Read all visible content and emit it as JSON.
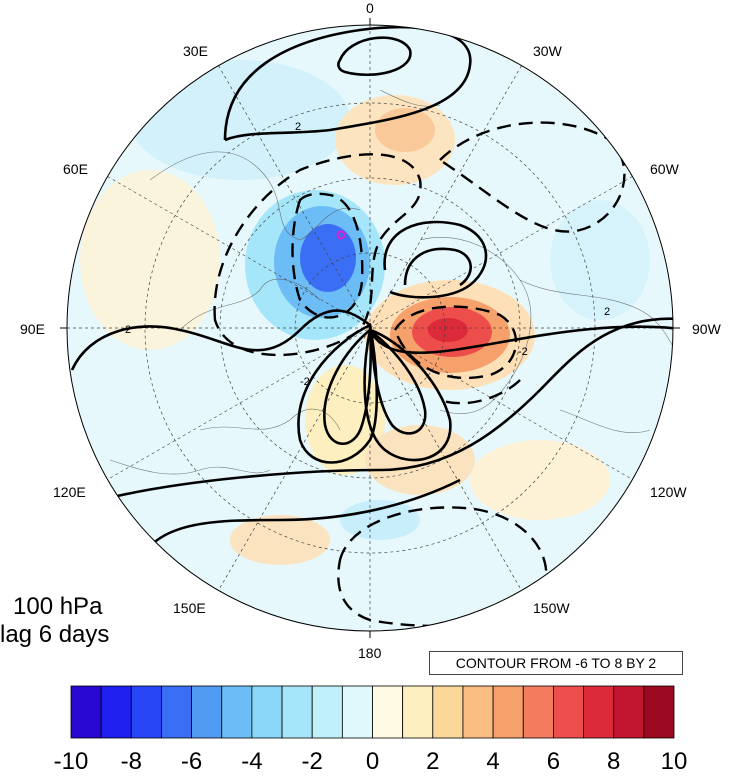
{
  "map": {
    "level": "100 hPa",
    "lag": "lag 6 days",
    "contour_note": "CONTOUR FROM -6 TO 8 BY 2",
    "meridian_labels": {
      "m0": "0",
      "m30w": "30W",
      "m60w": "60W",
      "m90w": "90W",
      "m120w": "120W",
      "m150w": "150W",
      "m180": "180",
      "m150e": "150E",
      "m120e": "120E",
      "m90e": "90E",
      "m60e": "60E",
      "m30e": "30E"
    },
    "contour_labels": [
      "2",
      "-2",
      "2",
      "2",
      "-2"
    ],
    "colors": {
      "neg": [
        "#2a08d4",
        "#1f1ff0",
        "#2846f5",
        "#3a6ef5",
        "#529bf3",
        "#6cbcf5",
        "#8ad6f8",
        "#a6e6fa",
        "#c0f0fb",
        "#def8fc"
      ],
      "pos": [
        "#fffbe3",
        "#fdefbf",
        "#fbd79a",
        "#f9bd82",
        "#f6a06c",
        "#f37b5e",
        "#ee4e4b",
        "#dc2a3a",
        "#c21530",
        "#9c0a22"
      ]
    }
  },
  "colorbar": {
    "ticks": [
      "-10",
      "-8",
      "-6",
      "-4",
      "-2",
      "0",
      "2",
      "4",
      "6",
      "8",
      "10"
    ]
  }
}
